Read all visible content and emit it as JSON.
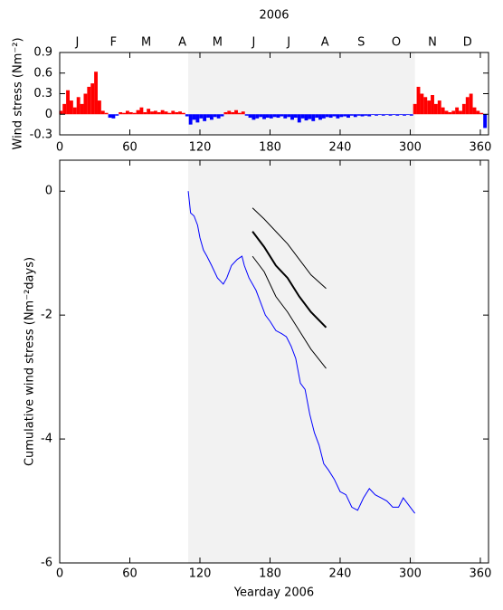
{
  "chart_data": [
    {
      "type": "bar",
      "title": "2006",
      "y_label": "Wind stress (Nm⁻²)",
      "xlim": [
        0,
        367
      ],
      "xticks": [
        0,
        60,
        120,
        180,
        240,
        300,
        360
      ],
      "ylim": [
        -0.3,
        0.9
      ],
      "yticks": [
        -0.3,
        0,
        0.3,
        0.6,
        0.9
      ],
      "x2ticks": [
        {
          "value": 15,
          "label": "J"
        },
        {
          "value": 46,
          "label": "F"
        },
        {
          "value": 74,
          "label": "M"
        },
        {
          "value": 105,
          "label": "A"
        },
        {
          "value": 135,
          "label": "M"
        },
        {
          "value": 166,
          "label": "J"
        },
        {
          "value": 196,
          "label": "J"
        },
        {
          "value": 227,
          "label": "A"
        },
        {
          "value": 258,
          "label": "S"
        },
        {
          "value": 288,
          "label": "O"
        },
        {
          "value": 319,
          "label": "N"
        },
        {
          "value": 349,
          "label": "D"
        }
      ],
      "shade": [
        110,
        304
      ],
      "shade_color": "#f2f2f2",
      "positive_color": "#ff0000",
      "negative_color": "#0000ff",
      "bar_width": 3,
      "x": [
        1,
        4,
        7,
        10,
        13,
        16,
        19,
        22,
        25,
        28,
        31,
        34,
        37,
        40,
        43,
        46,
        49,
        52,
        55,
        58,
        61,
        64,
        67,
        70,
        73,
        76,
        79,
        82,
        85,
        88,
        91,
        94,
        97,
        100,
        103,
        106,
        109,
        112,
        115,
        118,
        121,
        124,
        127,
        130,
        133,
        136,
        139,
        142,
        145,
        148,
        151,
        154,
        157,
        160,
        163,
        166,
        169,
        172,
        175,
        178,
        181,
        184,
        187,
        190,
        193,
        196,
        199,
        202,
        205,
        208,
        211,
        214,
        217,
        220,
        223,
        226,
        229,
        232,
        235,
        238,
        241,
        244,
        247,
        250,
        253,
        256,
        259,
        262,
        265,
        268,
        271,
        274,
        277,
        280,
        283,
        286,
        289,
        292,
        295,
        298,
        301,
        304,
        307,
        310,
        313,
        316,
        319,
        322,
        325,
        328,
        331,
        334,
        337,
        340,
        343,
        346,
        349,
        352,
        355,
        358,
        361,
        364
      ],
      "values": [
        0.05,
        0.15,
        0.35,
        0.2,
        0.1,
        0.25,
        0.15,
        0.3,
        0.4,
        0.45,
        0.62,
        0.2,
        0.05,
        0.02,
        -0.05,
        -0.06,
        -0.02,
        0.03,
        0.02,
        0.05,
        0.03,
        0.02,
        0.06,
        0.1,
        0.03,
        0.08,
        0.04,
        0.05,
        0.03,
        0.06,
        0.04,
        0.02,
        0.05,
        0.03,
        0.04,
        0.02,
        -0.03,
        -0.15,
        -0.08,
        -0.12,
        -0.06,
        -0.1,
        -0.05,
        -0.08,
        -0.04,
        -0.06,
        -0.03,
        0.03,
        0.05,
        0.03,
        0.06,
        0.02,
        0.04,
        -0.02,
        -0.05,
        -0.08,
        -0.06,
        -0.04,
        -0.07,
        -0.05,
        -0.06,
        -0.04,
        -0.05,
        -0.03,
        -0.06,
        -0.04,
        -0.08,
        -0.05,
        -0.12,
        -0.06,
        -0.09,
        -0.07,
        -0.1,
        -0.05,
        -0.08,
        -0.06,
        -0.04,
        -0.05,
        -0.03,
        -0.06,
        -0.04,
        -0.03,
        -0.05,
        -0.02,
        -0.04,
        -0.02,
        -0.03,
        -0.02,
        -0.03,
        -0.01,
        -0.02,
        -0.01,
        -0.02,
        -0.01,
        -0.02,
        -0.01,
        -0.02,
        -0.01,
        -0.02,
        -0.01,
        -0.02,
        0.15,
        0.4,
        0.3,
        0.25,
        0.2,
        0.28,
        0.15,
        0.2,
        0.1,
        0.05,
        0.03,
        0.05,
        0.1,
        0.05,
        0.15,
        0.25,
        0.3,
        0.1,
        0.05,
        0.02,
        -0.2
      ]
    },
    {
      "type": "line",
      "x_label": "Yearday 2006",
      "y_label": "Cumulative wind stress (Nm⁻²days)",
      "xlim": [
        0,
        367
      ],
      "xticks": [
        0,
        60,
        120,
        180,
        240,
        300,
        360
      ],
      "ylim": [
        -6,
        0.5
      ],
      "yticks": [
        -6,
        -4,
        -2,
        0
      ],
      "shade": [
        110,
        304
      ],
      "shade_color": "#f2f2f2",
      "series": [
        {
          "color": "#0000ff",
          "line_width": 1,
          "x": [
            110,
            112,
            115,
            118,
            120,
            123,
            126,
            130,
            135,
            140,
            143,
            147,
            152,
            156,
            158,
            162,
            165,
            168,
            172,
            176,
            180,
            185,
            190,
            194,
            198,
            202,
            206,
            210,
            214,
            218,
            222,
            226,
            230,
            235,
            240,
            245,
            250,
            255,
            260,
            265,
            270,
            275,
            280,
            285,
            290,
            294,
            298,
            302,
            304
          ],
          "values": [
            0,
            -0.35,
            -0.4,
            -0.55,
            -0.75,
            -0.95,
            -1.05,
            -1.2,
            -1.4,
            -1.5,
            -1.4,
            -1.2,
            -1.1,
            -1.05,
            -1.2,
            -1.4,
            -1.5,
            -1.6,
            -1.8,
            -2.0,
            -2.1,
            -2.25,
            -2.3,
            -2.35,
            -2.5,
            -2.7,
            -3.1,
            -3.2,
            -3.6,
            -3.9,
            -4.1,
            -4.4,
            -4.5,
            -4.65,
            -4.85,
            -4.9,
            -5.1,
            -5.15,
            -4.95,
            -4.8,
            -4.9,
            -4.95,
            -5.0,
            -5.1,
            -5.1,
            -4.95,
            -5.05,
            -5.15,
            -5.2
          ]
        },
        {
          "color": "#000000",
          "line_width": 1,
          "x": [
            165,
            175,
            185,
            195,
            205,
            215,
            228
          ],
          "values": [
            -0.27,
            -0.45,
            -0.65,
            -0.85,
            -1.1,
            -1.35,
            -1.57
          ]
        },
        {
          "color": "#000000",
          "line_width": 2,
          "x": [
            165,
            175,
            185,
            195,
            205,
            215,
            228
          ],
          "values": [
            -0.65,
            -0.9,
            -1.2,
            -1.4,
            -1.7,
            -1.95,
            -2.2
          ]
        },
        {
          "color": "#000000",
          "line_width": 1,
          "x": [
            165,
            175,
            185,
            195,
            205,
            215,
            228
          ],
          "values": [
            -1.05,
            -1.3,
            -1.7,
            -1.95,
            -2.25,
            -2.55,
            -2.86
          ]
        }
      ]
    }
  ]
}
